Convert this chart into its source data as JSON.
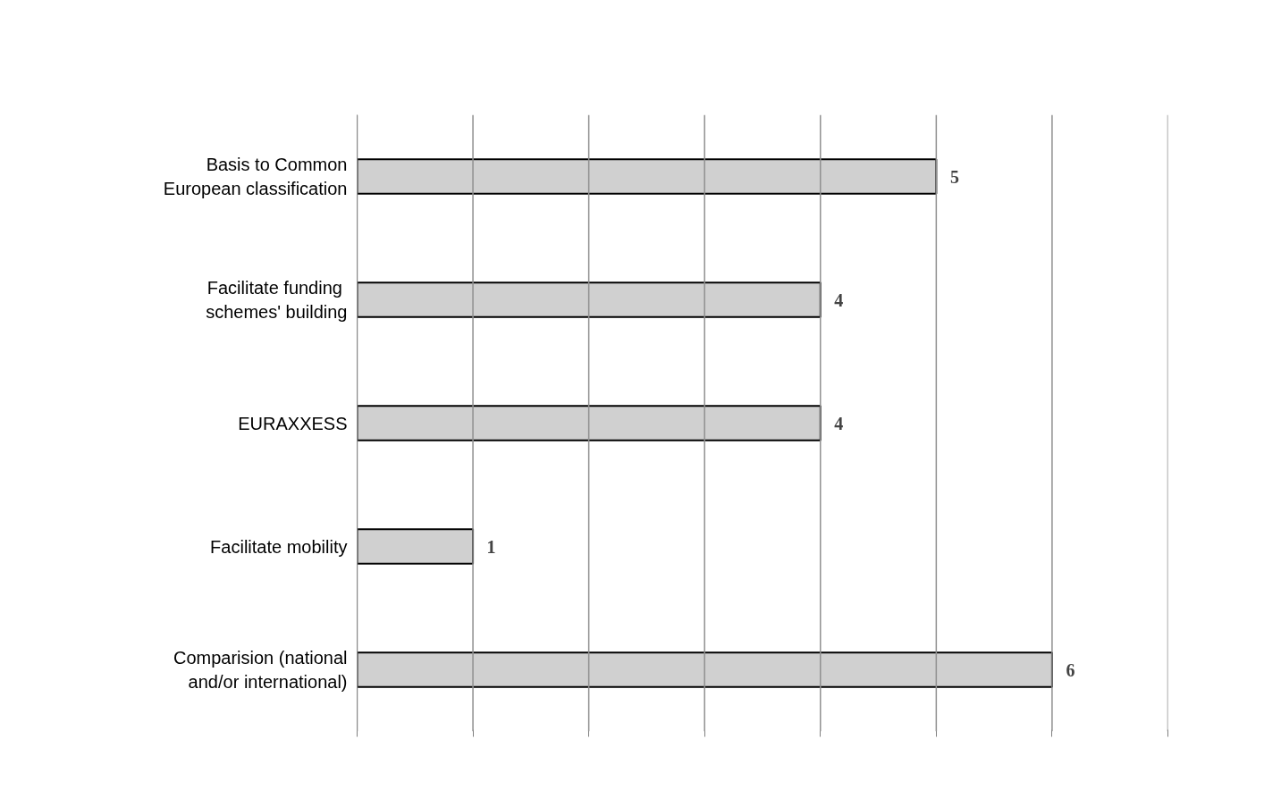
{
  "chart_data": {
    "type": "bar",
    "orientation": "horizontal",
    "categories": [
      "Basis to Common\nEuropean classification",
      "Facilitate funding \nschemes' building",
      "EURAXXESS",
      "Facilitate mobility",
      "Comparision (national\nand/or international)"
    ],
    "values": [
      5,
      4,
      4,
      1,
      6
    ],
    "color": "#d0d0d0",
    "data_labels": true,
    "xlim": [
      0,
      7
    ],
    "xticks": [
      {
        "value": 0,
        "label": null
      },
      {
        "value": 1,
        "label": null
      },
      {
        "value": 2,
        "label": null
      },
      {
        "value": 3,
        "label": null
      },
      {
        "value": 4,
        "label": null
      },
      {
        "value": 5,
        "label": null
      },
      {
        "value": 6,
        "label": null
      },
      {
        "value": 7,
        "label": null
      }
    ],
    "tick_labels": "y",
    "grid": "x"
  }
}
